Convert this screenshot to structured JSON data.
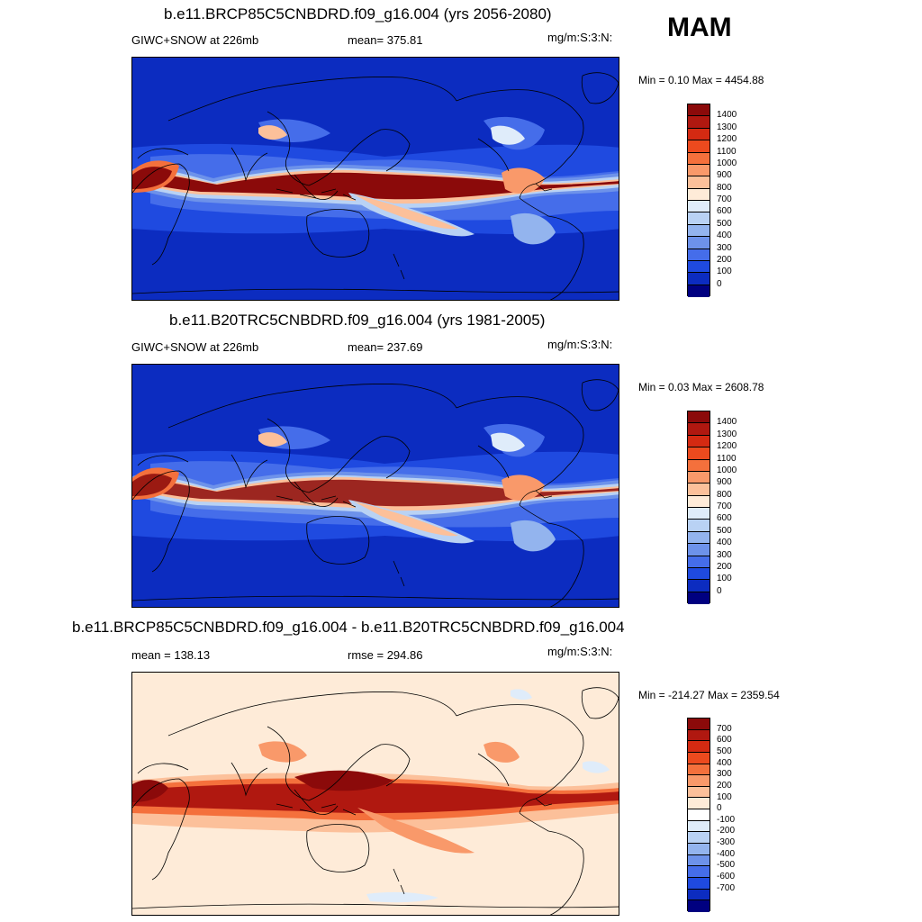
{
  "season": "MAM",
  "panels": [
    {
      "title": "b.e11.BRCP85C5CNBDRD.f09_g16.004 (yrs 2056-2080)",
      "left_text": "GIWC+SNOW at 226mb",
      "mid_text": "mean= 375.81",
      "units": "mg/m:S:3:N:",
      "minmax": "Min =   0.10 Max = 4454.88",
      "kind": "abs",
      "colorbar": {
        "colors": [
          "#8b0a0a",
          "#b01810",
          "#d42a12",
          "#ec4a1e",
          "#f4703c",
          "#f9996a",
          "#fcc09a",
          "#feebd8",
          "#dfecfa",
          "#b9d2f4",
          "#93b4ee",
          "#6d92ea",
          "#456dea",
          "#1f4ae0",
          "#0c2cc0",
          "#000080"
        ],
        "labels": [
          "1400",
          "1300",
          "1200",
          "1100",
          "1000",
          "900",
          "800",
          "700",
          "600",
          "500",
          "400",
          "300",
          "200",
          "100",
          "0"
        ]
      }
    },
    {
      "title": "b.e11.B20TRC5CNBDRD.f09_g16.004 (yrs 1981-2005)",
      "left_text": "GIWC+SNOW at 226mb",
      "mid_text": "mean= 237.69",
      "units": "mg/m:S:3:N:",
      "minmax": "Min =   0.03 Max = 2608.78",
      "kind": "abs",
      "colorbar": {
        "colors": [
          "#8b0a0a",
          "#b01810",
          "#d42a12",
          "#ec4a1e",
          "#f4703c",
          "#f9996a",
          "#fcc09a",
          "#feebd8",
          "#dfecfa",
          "#b9d2f4",
          "#93b4ee",
          "#6d92ea",
          "#456dea",
          "#1f4ae0",
          "#0c2cc0",
          "#000080"
        ],
        "labels": [
          "1400",
          "1300",
          "1200",
          "1100",
          "1000",
          "900",
          "800",
          "700",
          "600",
          "500",
          "400",
          "300",
          "200",
          "100",
          "0"
        ]
      }
    },
    {
      "title": "b.e11.BRCP85C5CNBDRD.f09_g16.004 - b.e11.B20TRC5CNBDRD.f09_g16.004",
      "left_text": "mean = 138.13",
      "mid_text": "rmse = 294.86",
      "units": "mg/m:S:3:N:",
      "minmax": "Min = -214.27 Max = 2359.54",
      "kind": "diff",
      "colorbar": {
        "colors": [
          "#8b0a0a",
          "#b01810",
          "#d42a12",
          "#ec4a1e",
          "#f4703c",
          "#f9996a",
          "#fcc09a",
          "#feebd8",
          "#ffffff",
          "#dfecfa",
          "#b9d2f4",
          "#93b4ee",
          "#6d92ea",
          "#456dea",
          "#1f4ae0",
          "#0c2cc0",
          "#000080"
        ],
        "labels": [
          "700",
          "600",
          "500",
          "400",
          "300",
          "200",
          "100",
          "0",
          "-100",
          "-200",
          "-300",
          "-400",
          "-500",
          "-600",
          "-700"
        ]
      }
    }
  ]
}
